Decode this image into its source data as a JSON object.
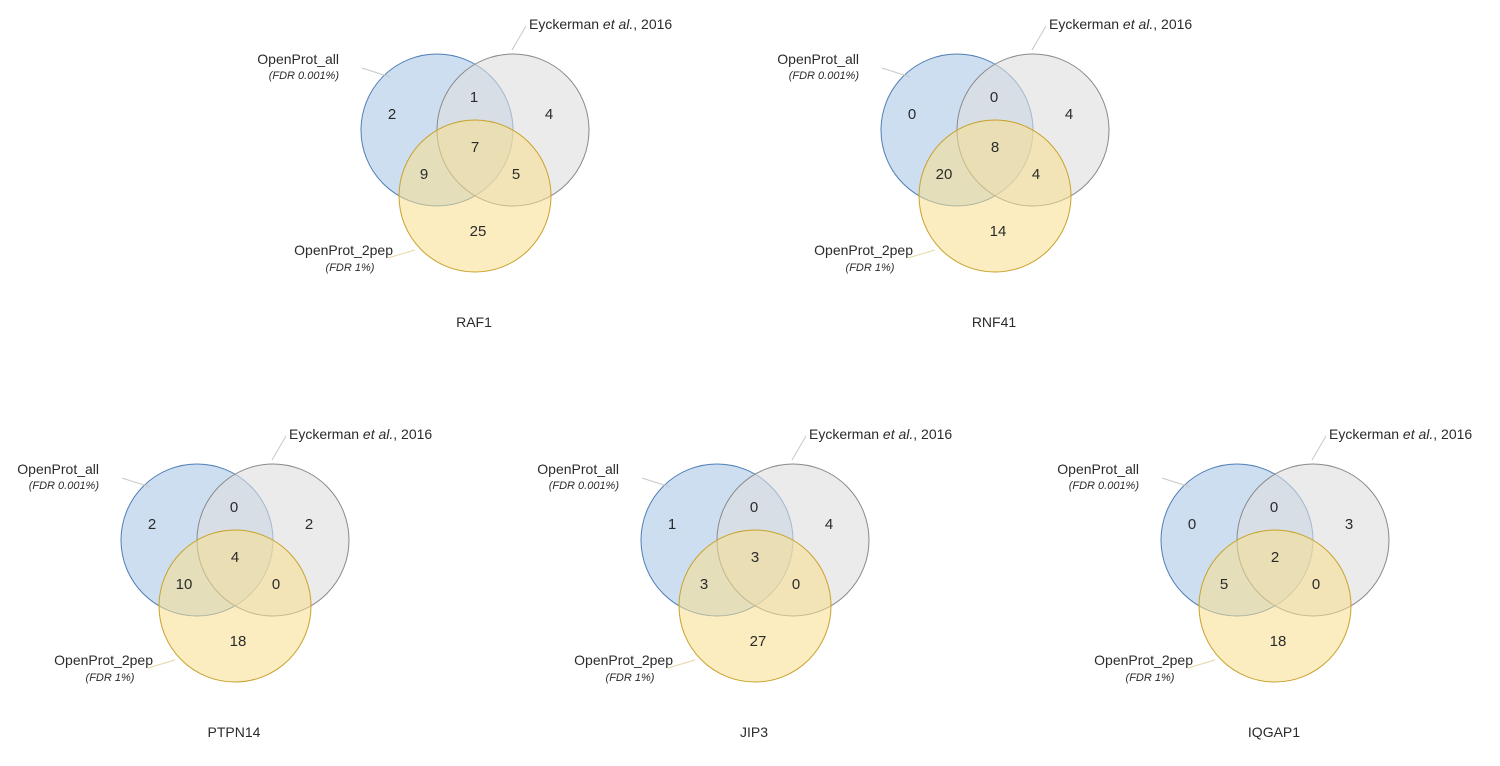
{
  "colors": {
    "openprot_all_fill": "#bcd3ec",
    "openprot_all_stroke": "#4f7fb5",
    "eyckerman_fill": "#dedede",
    "eyckerman_stroke": "#8a8a8a",
    "openprot_2pep_fill": "#f8de8c",
    "openprot_2pep_stroke": "#c9a22e"
  },
  "labels": {
    "openprot_all": "OpenProt_all",
    "openprot_all_sub": "(FDR 0.001%)",
    "eyckerman_prefix": "Eyckerman ",
    "eyckerman_etal": "et al.",
    "eyckerman_suffix": ", 2016",
    "openprot_2pep": "OpenProt_2pep",
    "openprot_2pep_sub": "(FDR 1%)"
  },
  "diagrams": [
    {
      "id": "raf1",
      "title": "RAF1",
      "counts": {
        "all_only": "2",
        "all_eyck": "1",
        "eyck_only": "4",
        "center": "7",
        "all_2pep": "9",
        "eyck_2pep": "5",
        "pep_only": "25"
      }
    },
    {
      "id": "rnf41",
      "title": "RNF41",
      "counts": {
        "all_only": "0",
        "all_eyck": "0",
        "eyck_only": "4",
        "center": "8",
        "all_2pep": "20",
        "eyck_2pep": "4",
        "pep_only": "14"
      }
    },
    {
      "id": "ptpn14",
      "title": "PTPN14",
      "counts": {
        "all_only": "2",
        "all_eyck": "0",
        "eyck_only": "2",
        "center": "4",
        "all_2pep": "10",
        "eyck_2pep": "0",
        "pep_only": "18"
      }
    },
    {
      "id": "jip3",
      "title": "JIP3",
      "counts": {
        "all_only": "1",
        "all_eyck": "0",
        "eyck_only": "4",
        "center": "3",
        "all_2pep": "3",
        "eyck_2pep": "0",
        "pep_only": "27"
      }
    },
    {
      "id": "iqgap1",
      "title": "IQGAP1",
      "counts": {
        "all_only": "0",
        "all_eyck": "0",
        "eyck_only": "3",
        "center": "2",
        "all_2pep": "5",
        "eyck_2pep": "0",
        "pep_only": "18"
      }
    }
  ]
}
